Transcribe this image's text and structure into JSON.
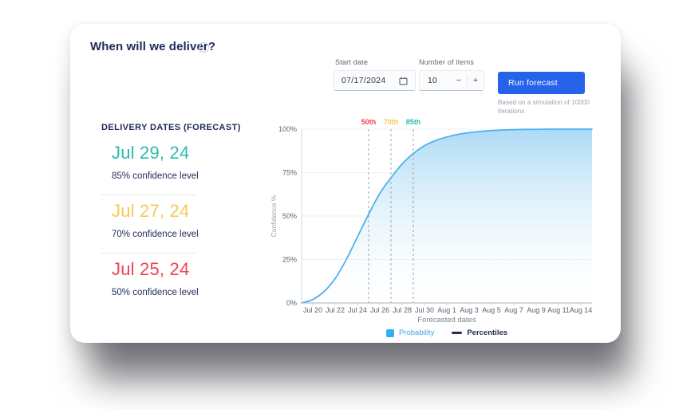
{
  "card": {
    "title": "When will we deliver?"
  },
  "controls": {
    "start_date": {
      "label": "Start date",
      "value": "07/17/2024"
    },
    "number_of_items": {
      "label": "Number of items",
      "value": "10",
      "decrement_label": "−",
      "increment_label": "+"
    },
    "run_forecast": {
      "label": "Run forecast",
      "note": "Based on a simulation of 10000 iterations"
    }
  },
  "forecast_panel": {
    "heading": "DELIVERY DATES (FORECAST)",
    "entries": [
      {
        "date": "Jul 29, 24",
        "confidence": "85% confidence level",
        "color": "#2CBCAD"
      },
      {
        "date": "Jul 27, 24",
        "confidence": "70% confidence level",
        "color": "#F4CB54"
      },
      {
        "date": "Jul 25, 24",
        "confidence": "50% confidence level",
        "color": "#EE4452"
      }
    ]
  },
  "chart_data": {
    "type": "area",
    "title": "",
    "xlabel": "Forecasted dates",
    "ylabel": "Confidence %",
    "ylim": [
      0,
      100
    ],
    "grid": true,
    "legend_position": "bottom",
    "x_tick_labels": [
      "Jul 20",
      "Jul 22",
      "Jul 24",
      "Jul 26",
      "Jul 28",
      "Jul 30",
      "Aug 1",
      "Aug 3",
      "Aug 5",
      "Aug 7",
      "Aug 9",
      "Aug 11",
      "Aug 14"
    ],
    "y_tick_labels": [
      "0%",
      "25%",
      "50%",
      "75%",
      "100%"
    ],
    "dates": [
      "Jul 19",
      "Jul 20",
      "Jul 21",
      "Jul 22",
      "Jul 23",
      "Jul 24",
      "Jul 25",
      "Jul 26",
      "Jul 27",
      "Jul 28",
      "Jul 29",
      "Jul 30",
      "Jul 31",
      "Aug 1",
      "Aug 2",
      "Aug 3",
      "Aug 4",
      "Aug 5",
      "Aug 6",
      "Aug 7",
      "Aug 8",
      "Aug 9",
      "Aug 10",
      "Aug 11",
      "Aug 12",
      "Aug 13",
      "Aug 14"
    ],
    "values": [
      0,
      2,
      6.5,
      14,
      25,
      38,
      51,
      63,
      72,
      80,
      86,
      90.5,
      93.5,
      95.5,
      97,
      98,
      98.7,
      99.2,
      99.5,
      99.7,
      99.85,
      99.9,
      100,
      100,
      100,
      100,
      100
    ],
    "percentiles": [
      {
        "label": "50th",
        "date": "Jul 25",
        "value": 50,
        "day_index": 6,
        "color": "#EE4452"
      },
      {
        "label": "70th",
        "date": "Jul 27",
        "value": 70,
        "day_index": 8,
        "color": "#F4CB54"
      },
      {
        "label": "85th",
        "date": "Jul 29",
        "value": 85,
        "day_index": 10,
        "color": "#2CBCAD"
      }
    ],
    "legend": [
      {
        "label": "Probability",
        "color": "#2FB1F0"
      },
      {
        "label": "Percentiles",
        "color": "#232C52"
      }
    ],
    "line_color": "#4AB2ED",
    "fill_top_color": "#A6D7F4",
    "accent_button_color": "#2563EB"
  }
}
